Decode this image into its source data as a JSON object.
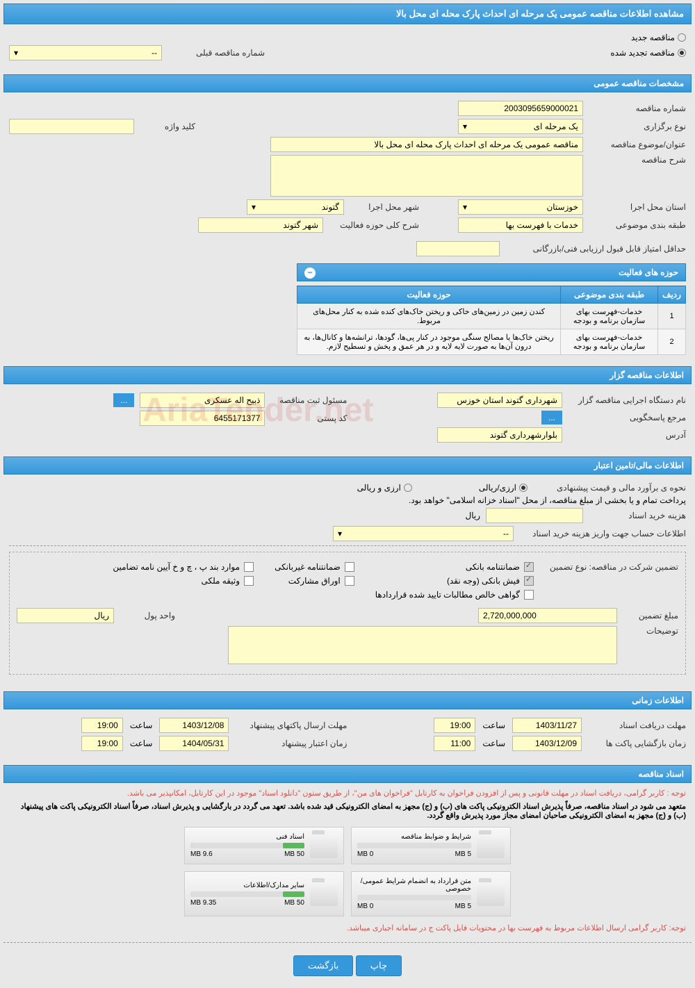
{
  "page_title": "مشاهده اطلاعات مناقصه عمومی یک مرحله ای احداث پارک محله ای محل بالا",
  "tender_type": {
    "new": "مناقصه جدید",
    "renewed": "مناقصه تجدید شده",
    "prev_number_label": "شماره مناقصه قبلی",
    "prev_number_value": "--"
  },
  "sections": {
    "general": "مشخصات مناقصه عمومی",
    "activities": "حوزه های فعالیت",
    "organizer": "اطلاعات مناقصه گزار",
    "financial": "اطلاعات مالی/تامین اعتبار",
    "timing": "اطلاعات زمانی",
    "documents": "اسناد مناقصه"
  },
  "general": {
    "number_label": "شماره مناقصه",
    "number": "2003095659000021",
    "type_label": "نوع برگزاری",
    "type": "یک مرحله ای",
    "keyword_label": "کلید واژه",
    "keyword": "",
    "subject_label": "عنوان/موضوع مناقصه",
    "subject": "مناقصه عمومی یک مرحله ای احداث پارک محله ای محل بالا",
    "desc_label": "شرح مناقصه",
    "desc": "",
    "province_label": "استان محل اجرا",
    "province": "خوزستان",
    "city_label": "شهر محل اجرا",
    "city": "گتوند",
    "category_label": "طبقه بندی موضوعی",
    "category": "خدمات با فهرست بها",
    "activity_desc_label": "شرح کلی حوزه فعالیت",
    "activity_desc": "شهر گتوند",
    "min_score_label": "حداقل امتیاز قابل قبول ارزیابی فنی/بازرگانی",
    "min_score": ""
  },
  "activity_table": {
    "cols": [
      "ردیف",
      "طبقه بندی موضوعی",
      "حوزه فعالیت"
    ],
    "rows": [
      [
        "1",
        "خدمات-فهرست بهای سازمان برنامه و بودجه",
        "کندن زمین در زمین‌های خاکی و ریختن خاک‌های کنده شده به کنار محل‌های مربوط."
      ],
      [
        "2",
        "خدمات-فهرست بهای سازمان برنامه و بودجه",
        "ریختن خاک‌ها یا مصالح سنگی موجود در کنار پی‌ها، گودها، ترانشه‌ها و کانال‌ها، به درون آن‌ها به صورت لایه لایه و در هر عمق و پخش و تسطیح لازم."
      ]
    ]
  },
  "organizer": {
    "name_label": "نام دستگاه اجرایی مناقصه گزار",
    "name": "شهرداری گتوند استان خوزس",
    "responsible_label": "مسئول ثبت مناقصه",
    "responsible": "ذبیح اله عسکری",
    "more_btn": "...",
    "contact_label": "مرجع پاسخگویی",
    "contact_btn": "...",
    "postal_label": "کد پستی",
    "postal": "6455171377",
    "address_label": "آدرس",
    "address": "بلوارشهرداری گتوند"
  },
  "financial": {
    "estimate_label": "نحوه ی برآورد مالی و قیمت پیشنهادی",
    "rial_only": "ارزی/ریالی",
    "rial_and_curr": "ارزی و ریالی",
    "note": "پرداخت تمام و یا بخشی از مبلغ مناقصه، از محل \"اسناد خزانه اسلامی\" خواهد بود.",
    "doc_fee_label": "هزینه خرید اسناد",
    "doc_fee_unit": "ریال",
    "account_label": "اطلاعات حساب جهت واریز هزینه خرید اسناد",
    "account": "--",
    "guarantee_label": "تضمین شرکت در مناقصه:   نوع تضمین",
    "g1": "ضمانتنامه بانکی",
    "g2": "ضمانتنامه غیربانکی",
    "g3": "موارد بند پ ، چ و خ آیین نامه تضامین",
    "g4": "فیش بانکی (وجه نقد)",
    "g5": "اوراق مشارکت",
    "g6": "وثیقه ملکی",
    "g7": "گواهی خالص مطالبات تایید شده قراردادها",
    "amount_label": "مبلغ تضمین",
    "amount": "2,720,000,000",
    "unit_label": "واحد پول",
    "unit": "ریال",
    "notes_label": "توضیحات"
  },
  "timing": {
    "doc_deadline_label": "مهلت دریافت اسناد",
    "doc_deadline_date": "1403/11/27",
    "time_label": "ساعت",
    "doc_deadline_time": "19:00",
    "submit_label": "مهلت ارسال پاکتهای پیشنهاد",
    "submit_date": "1403/12/08",
    "submit_time": "19:00",
    "open_label": "زمان بازگشایی پاکت ها",
    "open_date": "1403/12/09",
    "open_time": "11:00",
    "validity_label": "زمان اعتبار پیشنهاد",
    "validity_date": "1404/05/31",
    "validity_time": "19:00"
  },
  "documents": {
    "notice1": "توجه : کاربر گرامی، دریافت اسناد در مهلت قانونی و پس از افزودن فراخوان به کارتابل \"فراخوان های من\"، از طریق ستون \"دانلود اسناد\" موجود در این کارتابل، امکانپذیر می باشد.",
    "notice2": "متعهد می شود در اسناد مناقصه، صرفاً پذیرش اسناد الکترونیکی پاکت های (ب) و (ج) مجهز به امضای الکترونیکی قید شده باشد. تعهد می گردد در بارگشایی و پذیرش اسناد، صرفاً اسناد الکترونیکی پاکت های پیشنهاد (ب) و (ج) مجهز به امضای الکترونیکی صاحبان امضای مجاز مورد پذیرش واقع گردد.",
    "files": [
      {
        "title": "شرایط و ضوابط مناقصه",
        "used": "0 MB",
        "total": "5 MB",
        "pct": 0
      },
      {
        "title": "اسناد فنی",
        "used": "9.6 MB",
        "total": "50 MB",
        "pct": 19
      },
      {
        "title": "متن قرارداد به انضمام شرایط عمومی/خصوصی",
        "used": "0 MB",
        "total": "5 MB",
        "pct": 0
      },
      {
        "title": "سایر مدارک/اطلاعات",
        "used": "9.35 MB",
        "total": "50 MB",
        "pct": 19
      }
    ],
    "notice3": "توجه: کاربر گرامی ارسال اطلاعات مربوط به فهرست بها در محتویات فایل پاکت ج در سامانه اجباری میباشد."
  },
  "buttons": {
    "print": "چاپ",
    "back": "بازگشت"
  }
}
